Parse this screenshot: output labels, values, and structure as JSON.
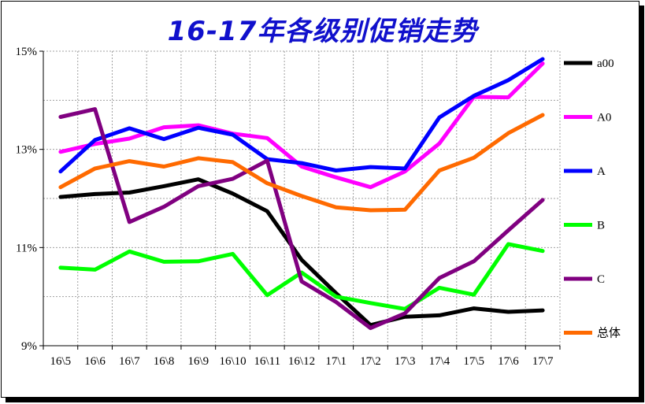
{
  "chart_data": {
    "type": "line",
    "title": "16-17年各级别促销走势",
    "xlabel": "",
    "ylabel": "",
    "categories": [
      "16\\5",
      "16\\6",
      "16\\7",
      "16\\8",
      "16\\9",
      "16\\10",
      "16\\11",
      "16\\12",
      "17\\1",
      "17\\2",
      "17\\3",
      "17\\4",
      "17\\5",
      "17\\6",
      "17\\7"
    ],
    "yticks": [
      "9%",
      "11%",
      "13%",
      "15%"
    ],
    "ylim": [
      9,
      15
    ],
    "grid": true,
    "legend_position": "right",
    "series": [
      {
        "name": "a00",
        "color": "#000000",
        "values": [
          12.03,
          12.09,
          12.12,
          12.25,
          12.39,
          12.1,
          11.74,
          10.75,
          10.07,
          9.42,
          9.59,
          9.62,
          9.76,
          9.69,
          9.72
        ]
      },
      {
        "name": "A0",
        "color": "#ff00ff",
        "values": [
          12.95,
          13.11,
          13.22,
          13.45,
          13.49,
          13.32,
          13.23,
          12.65,
          12.43,
          12.23,
          12.55,
          13.12,
          14.07,
          14.06,
          14.75
        ]
      },
      {
        "name": "A",
        "color": "#0000ff",
        "values": [
          12.55,
          13.19,
          13.43,
          13.21,
          13.44,
          13.3,
          12.8,
          12.72,
          12.57,
          12.64,
          12.61,
          13.65,
          14.09,
          14.41,
          14.84
        ]
      },
      {
        "name": "B",
        "color": "#00ff00",
        "values": [
          10.59,
          10.55,
          10.92,
          10.71,
          10.72,
          10.87,
          10.03,
          10.49,
          10.0,
          9.87,
          9.75,
          10.18,
          10.04,
          11.07,
          10.93
        ]
      },
      {
        "name": "C",
        "color": "#800080",
        "values": [
          13.66,
          13.82,
          11.52,
          11.83,
          12.25,
          12.4,
          12.77,
          10.31,
          9.89,
          9.36,
          9.66,
          10.38,
          10.72,
          11.35,
          11.97
        ]
      },
      {
        "name": "总体",
        "color": "#ff6a00",
        "values": [
          12.23,
          12.61,
          12.76,
          12.65,
          12.82,
          12.74,
          12.31,
          12.05,
          11.82,
          11.76,
          11.77,
          12.57,
          12.83,
          13.33,
          13.7
        ]
      }
    ]
  }
}
